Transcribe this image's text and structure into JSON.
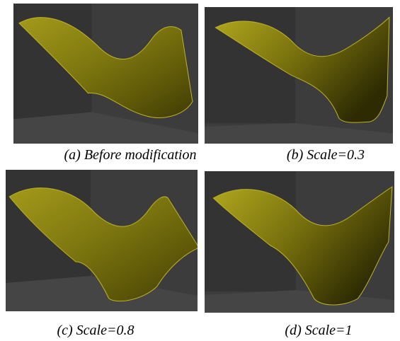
{
  "figure": {
    "panels": [
      {
        "caption": "(a) Before modification"
      },
      {
        "caption": "(b) Scale=0.3"
      },
      {
        "caption": "(c) Scale=0.8"
      },
      {
        "caption": "(d) Scale=1"
      }
    ]
  }
}
